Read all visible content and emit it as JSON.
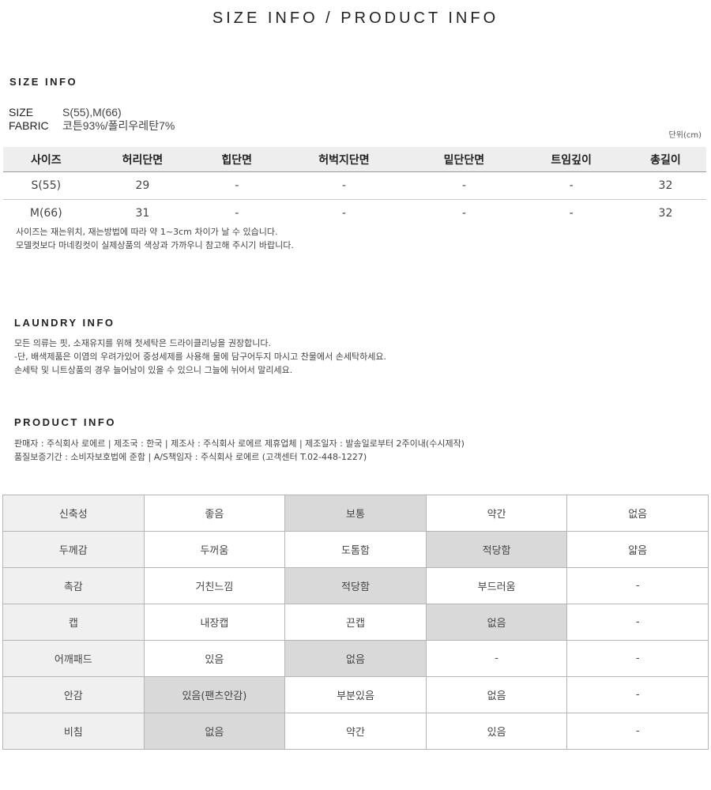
{
  "page_title": "SIZE INFO / PRODUCT INFO",
  "size_info": {
    "heading": "SIZE INFO",
    "size_label": "SIZE",
    "size_value": "S(55),M(66)",
    "fabric_label": "FABRIC",
    "fabric_value": "코튼93%/폴리우레탄7%",
    "unit": "단위(cm)",
    "columns": [
      "사이즈",
      "허리단면",
      "힙단면",
      "허벅지단면",
      "밑단단면",
      "트임깊이",
      "총길이"
    ],
    "rows": [
      [
        "S(55)",
        "29",
        "-",
        "-",
        "-",
        "-",
        "32"
      ],
      [
        "M(66)",
        "31",
        "-",
        "-",
        "-",
        "-",
        "32"
      ]
    ],
    "notes": [
      "사이즈는 재는위치, 재는방법에 따라 약 1~3cm 차이가 날 수 있습니다.",
      "모델컷보다 마네킹컷이 실제상품의 색상과 가까우니 참고해 주시기 바랍니다."
    ]
  },
  "laundry_info": {
    "heading": "LAUNDRY INFO",
    "lines": [
      "모든 의류는 핏, 소재유지를 위해 첫세탁은 드라이클리닝을 권장합니다.",
      "-단, 배색제품은 이염의 우려가있어 중성세제를 사용해 물에 담구어두지 마시고 찬물에서 손세탁하세요.",
      "손세탁 및 니트상품의 경우 늘어남이 있을 수 있으니 그늘에 뉘어서 말리세요."
    ]
  },
  "product_info": {
    "heading": "PRODUCT INFO",
    "lines": [
      "판매자 : 주식회사 로에르 | 제조국 : 한국 | 제조사 : 주식회사 로에르 제휴업체 | 제조일자 : 발송일로부터 2주이내(수시제작)",
      "품질보증기간 : 소비자보호법에 준함 | A/S책임자 : 주식회사 로에르 (고객센터 T.02-448-1227)"
    ]
  },
  "attributes": {
    "highlight_color": "#d9d9d9",
    "rows": [
      {
        "label": "신축성",
        "options": [
          "좋음",
          "보통",
          "약간",
          "없음"
        ],
        "selected": 1
      },
      {
        "label": "두께감",
        "options": [
          "두꺼움",
          "도톰함",
          "적당함",
          "얇음"
        ],
        "selected": 2
      },
      {
        "label": "촉감",
        "options": [
          "거친느낌",
          "적당함",
          "부드러움",
          "-"
        ],
        "selected": 1
      },
      {
        "label": "캡",
        "options": [
          "내장캡",
          "끈캡",
          "없음",
          "-"
        ],
        "selected": 2
      },
      {
        "label": "어깨패드",
        "options": [
          "있음",
          "없음",
          "-",
          "-"
        ],
        "selected": 1
      },
      {
        "label": "안감",
        "options": [
          "있음(팬츠안감)",
          "부분있음",
          "없음",
          "-"
        ],
        "selected": 0
      },
      {
        "label": "비침",
        "options": [
          "없음",
          "약간",
          "있음",
          "-"
        ],
        "selected": 0
      }
    ]
  }
}
